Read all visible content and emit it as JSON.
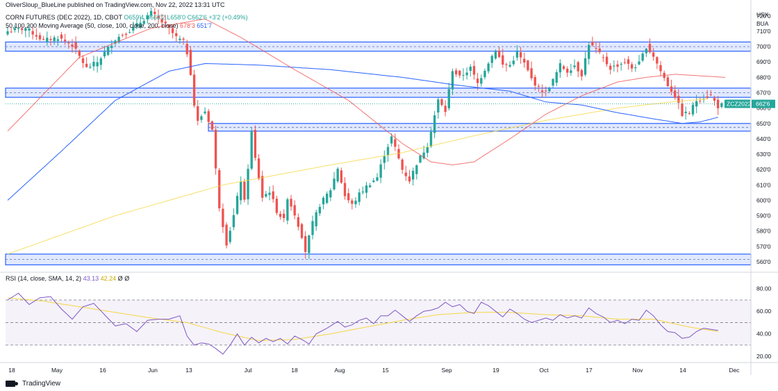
{
  "header": {
    "publisher": "OliverSloup_BlueLine published on TradingView.com, Nov 22, 2022 13:31 UTC",
    "symbol_line": "CORN FUTURES (DEC 2022), 1D, CBOT",
    "ohlc": "O659'4 H663'2 L658'0 C662'6 +3'2 (+0.49%)",
    "ma_label": "50,100,200 Moving Average (50, close, 100, close, 200, close)",
    "ma_values": [
      "678'3",
      "651'7"
    ],
    "rsi_label": "RSI (14, close, SMA, 14, 2)",
    "rsi_values": [
      "43.13",
      "42.24",
      "Ø",
      "Ø"
    ]
  },
  "price_axis": {
    "currency": "USX",
    "unit": "BUA",
    "ticks": [
      "720'0",
      "710'0",
      "700'0",
      "690'0",
      "680'0",
      "670'0",
      "660'0",
      "650'0",
      "640'0",
      "630'0",
      "620'0",
      "610'0",
      "600'0",
      "590'0",
      "580'0",
      "570'0",
      "560'0"
    ],
    "symbol_badge": "ZCZ2022",
    "last_price": "662'6"
  },
  "rsi_axis": {
    "ticks": [
      "80.00",
      "60.00",
      "40.00",
      "20.00"
    ]
  },
  "time_axis": {
    "ticks": [
      "18",
      "May",
      "16",
      "Jun",
      "13",
      "Jul",
      "18",
      "Aug",
      "15",
      "Sep",
      "19",
      "Oct",
      "17",
      "Nov",
      "14",
      "Dec"
    ]
  },
  "brand": "TradingView",
  "colors": {
    "up": "#26a69a",
    "down": "#ef5350",
    "ma50": "#ef5350",
    "ma100": "#2962ff",
    "ma200": "#f5d742",
    "rsi": "#7e57c2",
    "rsi_ma": "#f5d742",
    "zone": "#2962ff"
  },
  "chart_data": {
    "type": "candlestick",
    "ylim": [
      555,
      724
    ],
    "zones": [
      [
        697,
        703
      ],
      [
        667,
        673
      ],
      [
        645,
        650
      ],
      [
        558,
        565
      ]
    ],
    "candles_start": [
      [
        709,
        715,
        706,
        712
      ],
      [
        712,
        718,
        709,
        715
      ],
      [
        715,
        720,
        711,
        713
      ],
      [
        713,
        716,
        706,
        710
      ],
      [
        710,
        714,
        705,
        712
      ]
    ],
    "price_anchors": [
      [
        0,
        710
      ],
      [
        5,
        712
      ],
      [
        10,
        704
      ],
      [
        14,
        706
      ],
      [
        18,
        701
      ],
      [
        22,
        686
      ],
      [
        25,
        690
      ],
      [
        30,
        705
      ],
      [
        35,
        712
      ],
      [
        40,
        722
      ],
      [
        44,
        714
      ],
      [
        47,
        706
      ],
      [
        49,
        703
      ],
      [
        50,
        696
      ],
      [
        51,
        683
      ],
      [
        52,
        662
      ],
      [
        53,
        651
      ],
      [
        54,
        655
      ],
      [
        55,
        658
      ],
      [
        56,
        652
      ],
      [
        57,
        646
      ],
      [
        58,
        620
      ],
      [
        59,
        596
      ],
      [
        61,
        572
      ],
      [
        63,
        590
      ],
      [
        65,
        613
      ],
      [
        66,
        599
      ],
      [
        68,
        644
      ],
      [
        69,
        627
      ],
      [
        71,
        602
      ],
      [
        73,
        606
      ],
      [
        75,
        593
      ],
      [
        77,
        587
      ],
      [
        78,
        602
      ],
      [
        80,
        591
      ],
      [
        82,
        577
      ],
      [
        83,
        567
      ],
      [
        85,
        585
      ],
      [
        87,
        597
      ],
      [
        90,
        607
      ],
      [
        92,
        621
      ],
      [
        94,
        603
      ],
      [
        96,
        597
      ],
      [
        98,
        604
      ],
      [
        100,
        609
      ],
      [
        103,
        615
      ],
      [
        105,
        630
      ],
      [
        107,
        641
      ],
      [
        110,
        620
      ],
      [
        112,
        613
      ],
      [
        114,
        624
      ],
      [
        117,
        636
      ],
      [
        120,
        665
      ],
      [
        122,
        658
      ],
      [
        124,
        685
      ],
      [
        126,
        680
      ],
      [
        129,
        686
      ],
      [
        131,
        676
      ],
      [
        134,
        690
      ],
      [
        136,
        698
      ],
      [
        138,
        688
      ],
      [
        140,
        688
      ],
      [
        142,
        696
      ],
      [
        144,
        689
      ],
      [
        146,
        679
      ],
      [
        148,
        673
      ],
      [
        150,
        670
      ],
      [
        152,
        678
      ],
      [
        154,
        688
      ],
      [
        156,
        684
      ],
      [
        158,
        688
      ],
      [
        160,
        682
      ],
      [
        162,
        702
      ],
      [
        164,
        698
      ],
      [
        166,
        692
      ],
      [
        168,
        686
      ],
      [
        170,
        688
      ],
      [
        172,
        690
      ],
      [
        174,
        686
      ],
      [
        176,
        689
      ],
      [
        178,
        700
      ],
      [
        180,
        694
      ],
      [
        182,
        684
      ],
      [
        184,
        675
      ],
      [
        186,
        668
      ],
      [
        188,
        656
      ],
      [
        190,
        657
      ],
      [
        192,
        665
      ],
      [
        194,
        667
      ],
      [
        196,
        668
      ],
      [
        198,
        661
      ],
      [
        200,
        663
      ]
    ],
    "ma50": [
      [
        0,
        645
      ],
      [
        20,
        693
      ],
      [
        40,
        712
      ],
      [
        55,
        718
      ],
      [
        65,
        706
      ],
      [
        80,
        685
      ],
      [
        95,
        665
      ],
      [
        110,
        637
      ],
      [
        118,
        625
      ],
      [
        124,
        623
      ],
      [
        130,
        625
      ],
      [
        140,
        640
      ],
      [
        150,
        656
      ],
      [
        160,
        668
      ],
      [
        170,
        677
      ],
      [
        178,
        680
      ],
      [
        186,
        682
      ],
      [
        200,
        680
      ]
    ],
    "ma100": [
      [
        0,
        600
      ],
      [
        15,
        632
      ],
      [
        30,
        665
      ],
      [
        45,
        684
      ],
      [
        55,
        689
      ],
      [
        70,
        688
      ],
      [
        90,
        685
      ],
      [
        110,
        680
      ],
      [
        125,
        675
      ],
      [
        140,
        671
      ],
      [
        150,
        664
      ],
      [
        160,
        662
      ],
      [
        170,
        657
      ],
      [
        180,
        653
      ],
      [
        188,
        650
      ],
      [
        193,
        651
      ],
      [
        198,
        654
      ]
    ],
    "ma200": [
      [
        0,
        565
      ],
      [
        30,
        590
      ],
      [
        60,
        610
      ],
      [
        90,
        623
      ],
      [
        110,
        631
      ],
      [
        130,
        642
      ],
      [
        150,
        652
      ],
      [
        170,
        660
      ],
      [
        185,
        664
      ],
      [
        195,
        666
      ]
    ],
    "rsi": [
      [
        0,
        70
      ],
      [
        3,
        76
      ],
      [
        6,
        66
      ],
      [
        9,
        72
      ],
      [
        12,
        73
      ],
      [
        15,
        62
      ],
      [
        18,
        53
      ],
      [
        21,
        64
      ],
      [
        24,
        67
      ],
      [
        27,
        57
      ],
      [
        30,
        47
      ],
      [
        33,
        49
      ],
      [
        36,
        42
      ],
      [
        39,
        52
      ],
      [
        42,
        53
      ],
      [
        45,
        53
      ],
      [
        48,
        56
      ],
      [
        50,
        38
      ],
      [
        52,
        30
      ],
      [
        54,
        32
      ],
      [
        56,
        31
      ],
      [
        58,
        27
      ],
      [
        60,
        22
      ],
      [
        62,
        30
      ],
      [
        64,
        40
      ],
      [
        66,
        30
      ],
      [
        68,
        37
      ],
      [
        70,
        32
      ],
      [
        72,
        36
      ],
      [
        74,
        33
      ],
      [
        76,
        36
      ],
      [
        78,
        31
      ],
      [
        80,
        38
      ],
      [
        82,
        35
      ],
      [
        84,
        31
      ],
      [
        86,
        40
      ],
      [
        89,
        45
      ],
      [
        92,
        51
      ],
      [
        94,
        46
      ],
      [
        96,
        48
      ],
      [
        98,
        52
      ],
      [
        100,
        54
      ],
      [
        102,
        49
      ],
      [
        104,
        56
      ],
      [
        106,
        56
      ],
      [
        108,
        61
      ],
      [
        110,
        56
      ],
      [
        112,
        51
      ],
      [
        114,
        56
      ],
      [
        116,
        60
      ],
      [
        118,
        61
      ],
      [
        120,
        63
      ],
      [
        122,
        68
      ],
      [
        124,
        64
      ],
      [
        126,
        66
      ],
      [
        128,
        60
      ],
      [
        130,
        58
      ],
      [
        132,
        68
      ],
      [
        134,
        65
      ],
      [
        136,
        60
      ],
      [
        138,
        55
      ],
      [
        140,
        62
      ],
      [
        142,
        58
      ],
      [
        144,
        53
      ],
      [
        146,
        50
      ],
      [
        148,
        52
      ],
      [
        150,
        54
      ],
      [
        152,
        52
      ],
      [
        154,
        57
      ],
      [
        156,
        54
      ],
      [
        158,
        56
      ],
      [
        160,
        54
      ],
      [
        162,
        63
      ],
      [
        164,
        58
      ],
      [
        166,
        55
      ],
      [
        168,
        50
      ],
      [
        170,
        52
      ],
      [
        172,
        49
      ],
      [
        174,
        53
      ],
      [
        176,
        52
      ],
      [
        178,
        61
      ],
      [
        180,
        56
      ],
      [
        182,
        48
      ],
      [
        184,
        42
      ],
      [
        186,
        41
      ],
      [
        188,
        36
      ],
      [
        190,
        37
      ],
      [
        192,
        42
      ],
      [
        194,
        45
      ],
      [
        196,
        44
      ],
      [
        198,
        43
      ]
    ],
    "rsi_ma": [
      [
        0,
        72
      ],
      [
        10,
        69
      ],
      [
        20,
        64
      ],
      [
        30,
        59
      ],
      [
        40,
        54
      ],
      [
        50,
        50
      ],
      [
        60,
        41
      ],
      [
        70,
        34
      ],
      [
        80,
        35
      ],
      [
        90,
        40
      ],
      [
        100,
        46
      ],
      [
        110,
        52
      ],
      [
        120,
        57
      ],
      [
        130,
        59
      ],
      [
        140,
        59
      ],
      [
        150,
        57
      ],
      [
        160,
        56
      ],
      [
        170,
        53
      ],
      [
        180,
        53
      ],
      [
        190,
        46
      ],
      [
        198,
        42
      ]
    ],
    "rsi_ylim": [
      17,
      86
    ],
    "rsi_band": [
      30,
      70
    ],
    "rsi_mid": 50
  }
}
